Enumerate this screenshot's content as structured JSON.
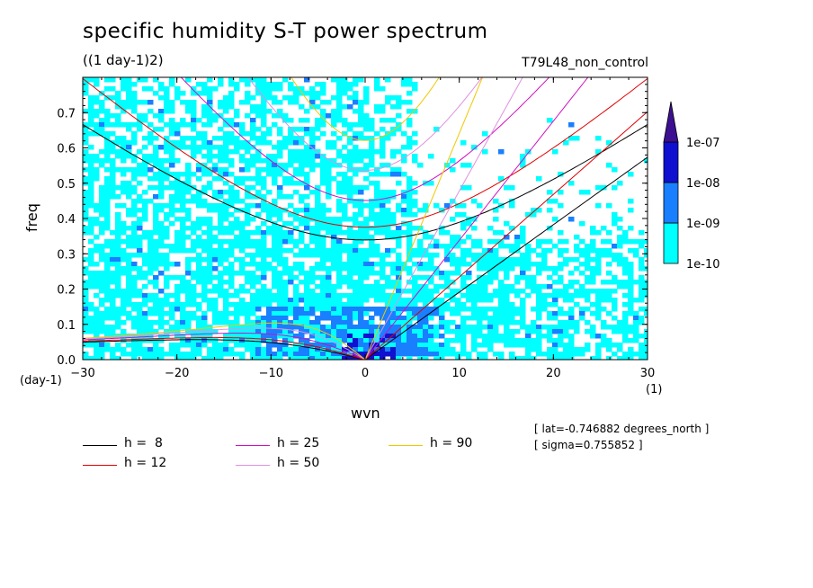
{
  "title": "specific humidity S-T power spectrum",
  "units_label": "((1 day-1)2)",
  "experiment": "T79L48_non_control",
  "info": {
    "lat": "[ lat=-0.746882 degrees_north ]",
    "sigma": "[ sigma=0.755852 ]"
  },
  "chart_data": {
    "type": "heatmap",
    "xlabel": "wvn",
    "ylabel": "freq",
    "x_unit_left": "(day-1)",
    "x_unit_right": "(1)",
    "xlim": [
      -30,
      30
    ],
    "ylim": [
      0,
      0.8
    ],
    "xticks": [
      "-30",
      "-20",
      "-10",
      "0",
      "10",
      "20",
      "30"
    ],
    "yticks": [
      "0.0",
      "0.1",
      "0.2",
      "0.3",
      "0.4",
      "0.5",
      "0.6",
      "0.7"
    ],
    "colorbar": {
      "levels": [
        "1e-10",
        "1e-09",
        "1e-08",
        "1e-07"
      ],
      "colors": [
        "#00ffff",
        "#1a7fff",
        "#1010d0",
        "#3c1090"
      ]
    },
    "dispersion_curves": [
      {
        "name": "h =  8",
        "color": "#000000"
      },
      {
        "name": "h = 12",
        "color": "#e00000"
      },
      {
        "name": "h = 25",
        "color": "#d010c0"
      },
      {
        "name": "h = 50",
        "color": "#e090e0"
      },
      {
        "name": "h = 90",
        "color": "#f0c800"
      }
    ]
  }
}
